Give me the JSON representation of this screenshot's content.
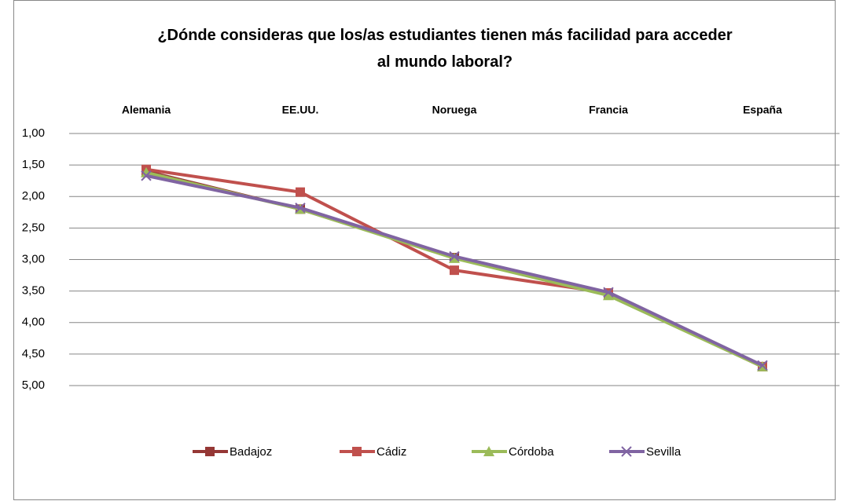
{
  "chart_data": {
    "type": "line",
    "title": "¿Dónde consideras que los/as estudiantes tienen más facilidad para acceder al mundo laboral?",
    "categories": [
      "Alemania",
      "EE.UU.",
      "Noruega",
      "Francia",
      "España"
    ],
    "series": [
      {
        "name": "Badajoz",
        "color": "#953735",
        "marker": "square",
        "values": [
          1.6,
          2.2,
          2.97,
          3.55,
          4.7
        ]
      },
      {
        "name": "Cádiz",
        "color": "#c0504d",
        "marker": "square",
        "values": [
          1.57,
          1.93,
          3.17,
          3.53,
          4.7
        ]
      },
      {
        "name": "Córdoba",
        "color": "#9bbb59",
        "marker": "triangle",
        "values": [
          1.62,
          2.2,
          2.98,
          3.57,
          4.7
        ]
      },
      {
        "name": "Sevilla",
        "color": "#8064a2",
        "marker": "x",
        "values": [
          1.67,
          2.18,
          2.95,
          3.52,
          4.68
        ]
      }
    ],
    "ylim": [
      1,
      5
    ],
    "yticks": [
      {
        "value": 1,
        "label": "1,00"
      },
      {
        "value": 1.5,
        "label": "1,50"
      },
      {
        "value": 2,
        "label": "2,00"
      },
      {
        "value": 2.5,
        "label": "2,50"
      },
      {
        "value": 3,
        "label": "3,00"
      },
      {
        "value": 3.5,
        "label": "3,50"
      },
      {
        "value": 4,
        "label": "4,00"
      },
      {
        "value": 4.5,
        "label": "4,50"
      },
      {
        "value": 5,
        "label": "5,00"
      }
    ],
    "y_inverted": true,
    "grid": true,
    "legend": "bottom"
  }
}
